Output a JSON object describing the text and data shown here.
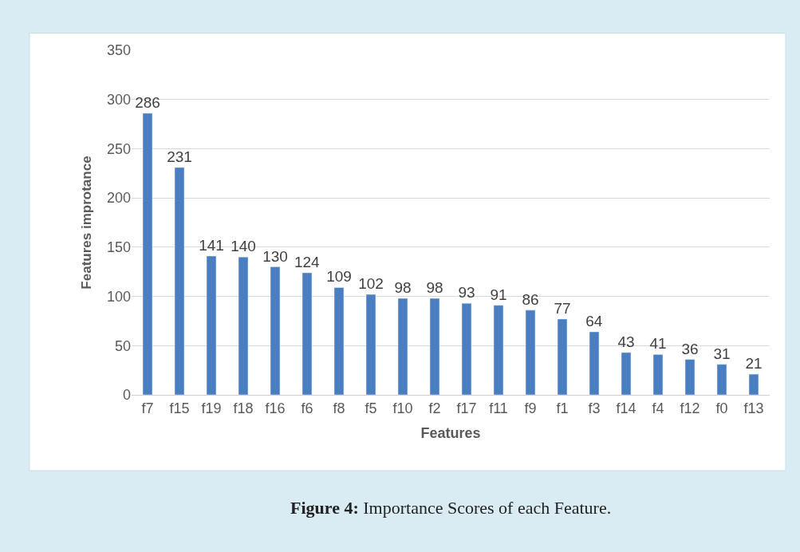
{
  "chart_data": {
    "type": "bar",
    "xlabel": "Features",
    "ylabel": "Features improtance",
    "categories": [
      "f7",
      "f15",
      "f19",
      "f18",
      "f16",
      "f6",
      "f8",
      "f5",
      "f10",
      "f2",
      "f17",
      "f11",
      "f9",
      "f1",
      "f3",
      "f14",
      "f4",
      "f12",
      "f0",
      "f13"
    ],
    "values": [
      286,
      231,
      141,
      140,
      130,
      124,
      109,
      102,
      98,
      98,
      93,
      91,
      86,
      77,
      64,
      43,
      41,
      36,
      31,
      21
    ],
    "color": "#4a7ec2",
    "data_labels": true,
    "ylim": [
      0,
      350
    ],
    "yticks": [
      0,
      50,
      100,
      150,
      200,
      250,
      300,
      350
    ],
    "grid": "y",
    "legend": false,
    "annotations": [
      "Figure 4: Importance Scores of each Feature."
    ]
  }
}
